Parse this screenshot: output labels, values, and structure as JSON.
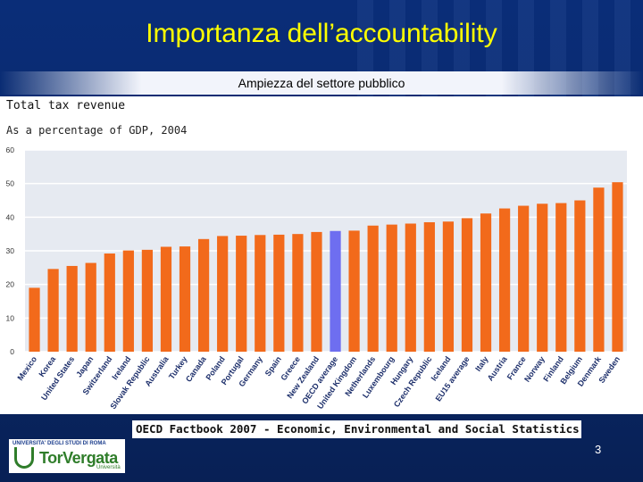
{
  "slide": {
    "title": "Importanza dell’accountability",
    "subtitle": "Ampiezza del settore pubblico",
    "source": "OECD Factbook 2007 - Economic, Environmental and Social Statistics",
    "page_number": "3",
    "logo": {
      "top_text": "UNIVERSITA' DEGLI STUDI DI ROMA",
      "main_text": "TorVergata",
      "bottom_text": "Università"
    }
  },
  "colors": {
    "background": "#0a2d78",
    "title": "#ffff00",
    "bar": "#f26a1b",
    "highlight_bar": "#6e6ef0",
    "plot_bg": "#e6eaf1"
  },
  "chart_data": {
    "type": "bar",
    "title": "Total tax revenue",
    "subtitle": "As a percentage of GDP, 2004",
    "ylim": [
      0,
      60
    ],
    "yticks": [
      0,
      10,
      20,
      30,
      40,
      50,
      60
    ],
    "grid": true,
    "highlight": "OECD average",
    "categories": [
      "Mexico",
      "Korea",
      "United States",
      "Japan",
      "Switzerland",
      "Ireland",
      "Slovak Republic",
      "Australia",
      "Turkey",
      "Canada",
      "Poland",
      "Portugal",
      "Germany",
      "Spain",
      "Greece",
      "New Zealand",
      "OECD average",
      "United Kingdom",
      "Netherlands",
      "Luxembourg",
      "Hungary",
      "Czech Republic",
      "Iceland",
      "EU15 average",
      "Italy",
      "Austria",
      "France",
      "Norway",
      "Finland",
      "Belgium",
      "Denmark",
      "Sweden"
    ],
    "values": [
      19.0,
      24.6,
      25.5,
      26.4,
      29.2,
      30.1,
      30.3,
      31.2,
      31.3,
      33.5,
      34.4,
      34.5,
      34.7,
      34.8,
      35.0,
      35.6,
      35.9,
      36.0,
      37.5,
      37.8,
      38.1,
      38.5,
      38.7,
      39.7,
      41.1,
      42.6,
      43.4,
      44.0,
      44.2,
      45.0,
      48.8,
      50.4
    ]
  }
}
